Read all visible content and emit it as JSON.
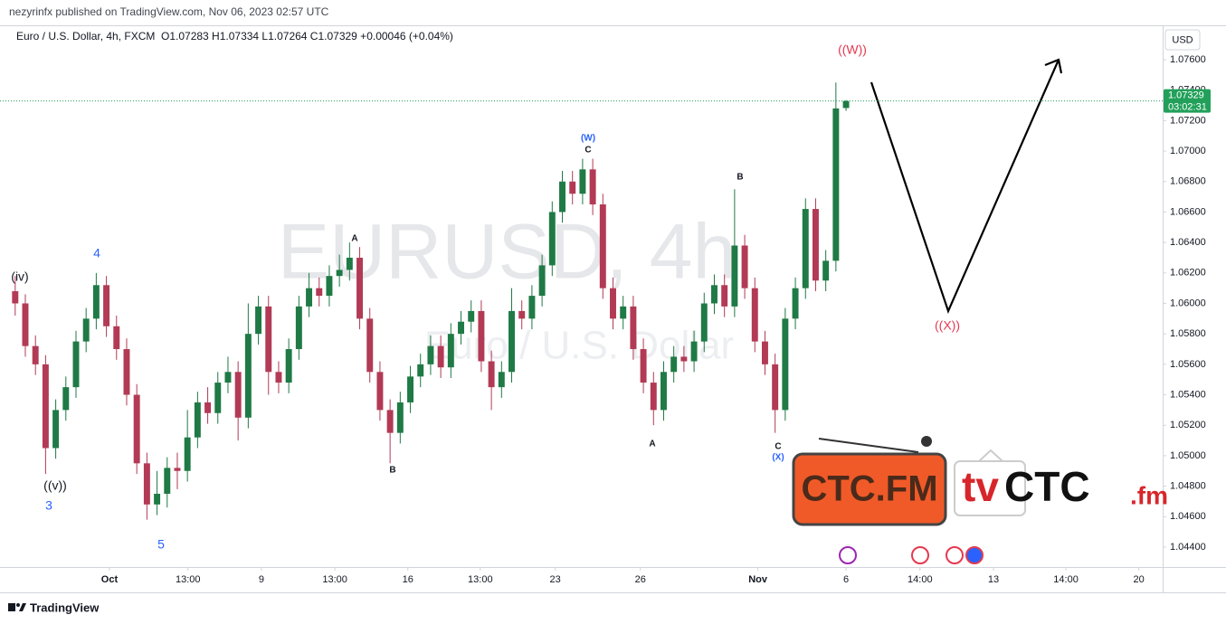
{
  "chart_data": {
    "type": "candlestick",
    "published": "nezyrinfx published on TradingView.com, Nov 06, 2023 02:57 UTC",
    "symbol": "Euro / U.S. Dollar, 4h, FXCM",
    "ohlc_text": "O1.07283  H1.07334  L1.07264  C1.07329  +0.00046 (+0.04%)",
    "watermark": "EURUSD, 4h",
    "watermark_sub": "Euro / U.S. Dollar",
    "currency": "USD",
    "countdown": "03:02:31",
    "footer": "TradingView",
    "up_color": "#1f7a45",
    "down_color": "#b23a55",
    "price_line_color": "#22a05a",
    "xlim": [
      -2,
      227.5
    ],
    "ylim": [
      1.04281,
      1.07814
    ],
    "yticks": [
      {
        "value": 1.044,
        "label": "1.04400"
      },
      {
        "value": 1.046,
        "label": "1.04600"
      },
      {
        "value": 1.048,
        "label": "1.04800"
      },
      {
        "value": 1.05,
        "label": "1.05000"
      },
      {
        "value": 1.052,
        "label": "1.05200"
      },
      {
        "value": 1.054,
        "label": "1.05400"
      },
      {
        "value": 1.056,
        "label": "1.05600"
      },
      {
        "value": 1.058,
        "label": "1.05800"
      },
      {
        "value": 1.06,
        "label": "1.06000"
      },
      {
        "value": 1.062,
        "label": "1.06200"
      },
      {
        "value": 1.064,
        "label": "1.06400"
      },
      {
        "value": 1.066,
        "label": "1.06600"
      },
      {
        "value": 1.068,
        "label": "1.06800"
      },
      {
        "value": 1.07,
        "label": "1.07000"
      },
      {
        "value": 1.072,
        "label": "1.07200"
      },
      {
        "value": 1.074,
        "label": "1.07400"
      },
      {
        "value": 1.076,
        "label": "1.07600"
      }
    ],
    "xticks": [
      {
        "value": 19.6,
        "label": "Oct"
      },
      {
        "value": 35.1,
        "label": "13:00"
      },
      {
        "value": 49.6,
        "label": "9"
      },
      {
        "value": 64.1,
        "label": "13:00"
      },
      {
        "value": 78.5,
        "label": "16"
      },
      {
        "value": 92.8,
        "label": "13:00"
      },
      {
        "value": 107.6,
        "label": "23"
      },
      {
        "value": 124.4,
        "label": "26"
      },
      {
        "value": 147.6,
        "label": "Nov"
      },
      {
        "value": 165,
        "label": "6"
      },
      {
        "value": 179.6,
        "label": "14:00"
      },
      {
        "value": 194.1,
        "label": "13"
      },
      {
        "value": 208.4,
        "label": "14:00"
      },
      {
        "value": 222.8,
        "label": "20"
      }
    ],
    "candles": [
      {
        "x": 1,
        "o": 1.0608,
        "h": 1.0618,
        "l": 1.0592,
        "c": 1.06
      },
      {
        "x": 3,
        "o": 1.06,
        "h": 1.0606,
        "l": 1.0565,
        "c": 1.0572
      },
      {
        "x": 5,
        "o": 1.0572,
        "h": 1.0579,
        "l": 1.0553,
        "c": 1.056
      },
      {
        "x": 7,
        "o": 1.056,
        "h": 1.0566,
        "l": 1.0488,
        "c": 1.0505
      },
      {
        "x": 9,
        "o": 1.0505,
        "h": 1.0537,
        "l": 1.0498,
        "c": 1.053
      },
      {
        "x": 11,
        "o": 1.053,
        "h": 1.0552,
        "l": 1.0523,
        "c": 1.0545
      },
      {
        "x": 13,
        "o": 1.0545,
        "h": 1.0582,
        "l": 1.0538,
        "c": 1.0575
      },
      {
        "x": 15,
        "o": 1.0575,
        "h": 1.0597,
        "l": 1.0568,
        "c": 1.059
      },
      {
        "x": 17,
        "o": 1.059,
        "h": 1.062,
        "l": 1.0583,
        "c": 1.0612
      },
      {
        "x": 19,
        "o": 1.0612,
        "h": 1.0618,
        "l": 1.0578,
        "c": 1.0585
      },
      {
        "x": 21,
        "o": 1.0585,
        "h": 1.0592,
        "l": 1.0563,
        "c": 1.057
      },
      {
        "x": 23,
        "o": 1.057,
        "h": 1.0577,
        "l": 1.0533,
        "c": 1.054
      },
      {
        "x": 25,
        "o": 1.054,
        "h": 1.0547,
        "l": 1.0488,
        "c": 1.0495
      },
      {
        "x": 27,
        "o": 1.0495,
        "h": 1.0502,
        "l": 1.0458,
        "c": 1.0468
      },
      {
        "x": 29,
        "o": 1.0468,
        "h": 1.049,
        "l": 1.0461,
        "c": 1.0475
      },
      {
        "x": 31,
        "o": 1.0475,
        "h": 1.0499,
        "l": 1.0466,
        "c": 1.0492
      },
      {
        "x": 33,
        "o": 1.0492,
        "h": 1.0502,
        "l": 1.0478,
        "c": 1.049
      },
      {
        "x": 35,
        "o": 1.049,
        "h": 1.053,
        "l": 1.0483,
        "c": 1.0512
      },
      {
        "x": 37,
        "o": 1.0512,
        "h": 1.0542,
        "l": 1.0505,
        "c": 1.0535
      },
      {
        "x": 39,
        "o": 1.0535,
        "h": 1.0545,
        "l": 1.0521,
        "c": 1.0528
      },
      {
        "x": 41,
        "o": 1.0528,
        "h": 1.0555,
        "l": 1.0521,
        "c": 1.0548
      },
      {
        "x": 43,
        "o": 1.0548,
        "h": 1.0565,
        "l": 1.0541,
        "c": 1.0555
      },
      {
        "x": 45,
        "o": 1.0555,
        "h": 1.0562,
        "l": 1.051,
        "c": 1.0525
      },
      {
        "x": 47,
        "o": 1.0525,
        "h": 1.06,
        "l": 1.0518,
        "c": 1.058
      },
      {
        "x": 49,
        "o": 1.058,
        "h": 1.0605,
        "l": 1.0573,
        "c": 1.0598
      },
      {
        "x": 51,
        "o": 1.0598,
        "h": 1.0605,
        "l": 1.054,
        "c": 1.0555
      },
      {
        "x": 53,
        "o": 1.0555,
        "h": 1.0562,
        "l": 1.0541,
        "c": 1.0548
      },
      {
        "x": 55,
        "o": 1.0548,
        "h": 1.0577,
        "l": 1.0541,
        "c": 1.057
      },
      {
        "x": 57,
        "o": 1.057,
        "h": 1.0605,
        "l": 1.0563,
        "c": 1.0598
      },
      {
        "x": 59,
        "o": 1.0598,
        "h": 1.062,
        "l": 1.0591,
        "c": 1.061
      },
      {
        "x": 61,
        "o": 1.061,
        "h": 1.0617,
        "l": 1.0598,
        "c": 1.0605
      },
      {
        "x": 63,
        "o": 1.0605,
        "h": 1.0625,
        "l": 1.0598,
        "c": 1.0618
      },
      {
        "x": 65,
        "o": 1.0618,
        "h": 1.0632,
        "l": 1.0611,
        "c": 1.0622
      },
      {
        "x": 67,
        "o": 1.0622,
        "h": 1.064,
        "l": 1.0615,
        "c": 1.063
      },
      {
        "x": 69,
        "o": 1.063,
        "h": 1.0637,
        "l": 1.0583,
        "c": 1.059
      },
      {
        "x": 71,
        "o": 1.059,
        "h": 1.0597,
        "l": 1.0548,
        "c": 1.0555
      },
      {
        "x": 73,
        "o": 1.0555,
        "h": 1.0562,
        "l": 1.0523,
        "c": 1.053
      },
      {
        "x": 75,
        "o": 1.053,
        "h": 1.0537,
        "l": 1.0495,
        "c": 1.0515
      },
      {
        "x": 77,
        "o": 1.0515,
        "h": 1.0542,
        "l": 1.0508,
        "c": 1.0535
      },
      {
        "x": 79,
        "o": 1.0535,
        "h": 1.0559,
        "l": 1.0528,
        "c": 1.0552
      },
      {
        "x": 81,
        "o": 1.0552,
        "h": 1.0567,
        "l": 1.0545,
        "c": 1.056
      },
      {
        "x": 83,
        "o": 1.056,
        "h": 1.0579,
        "l": 1.0553,
        "c": 1.0572
      },
      {
        "x": 85,
        "o": 1.0572,
        "h": 1.0579,
        "l": 1.0551,
        "c": 1.0558
      },
      {
        "x": 87,
        "o": 1.0558,
        "h": 1.0587,
        "l": 1.0551,
        "c": 1.058
      },
      {
        "x": 89,
        "o": 1.058,
        "h": 1.0595,
        "l": 1.0573,
        "c": 1.0588
      },
      {
        "x": 91,
        "o": 1.0588,
        "h": 1.0602,
        "l": 1.0581,
        "c": 1.0595
      },
      {
        "x": 93,
        "o": 1.0595,
        "h": 1.0602,
        "l": 1.0555,
        "c": 1.0562
      },
      {
        "x": 95,
        "o": 1.0562,
        "h": 1.0569,
        "l": 1.053,
        "c": 1.0545
      },
      {
        "x": 97,
        "o": 1.0545,
        "h": 1.0562,
        "l": 1.0538,
        "c": 1.0555
      },
      {
        "x": 99,
        "o": 1.0555,
        "h": 1.061,
        "l": 1.0548,
        "c": 1.0595
      },
      {
        "x": 101,
        "o": 1.0595,
        "h": 1.0602,
        "l": 1.0583,
        "c": 1.059
      },
      {
        "x": 103,
        "o": 1.059,
        "h": 1.0612,
        "l": 1.0583,
        "c": 1.0605
      },
      {
        "x": 105,
        "o": 1.0605,
        "h": 1.0632,
        "l": 1.0598,
        "c": 1.0625
      },
      {
        "x": 107,
        "o": 1.0625,
        "h": 1.0667,
        "l": 1.0618,
        "c": 1.066
      },
      {
        "x": 109,
        "o": 1.066,
        "h": 1.0687,
        "l": 1.0653,
        "c": 1.068
      },
      {
        "x": 111,
        "o": 1.068,
        "h": 1.0687,
        "l": 1.0665,
        "c": 1.0672
      },
      {
        "x": 113,
        "o": 1.0672,
        "h": 1.0695,
        "l": 1.0665,
        "c": 1.0688
      },
      {
        "x": 115,
        "o": 1.0688,
        "h": 1.0695,
        "l": 1.0658,
        "c": 1.0665
      },
      {
        "x": 117,
        "o": 1.0665,
        "h": 1.0672,
        "l": 1.0603,
        "c": 1.061
      },
      {
        "x": 119,
        "o": 1.061,
        "h": 1.0617,
        "l": 1.0583,
        "c": 1.059
      },
      {
        "x": 121,
        "o": 1.059,
        "h": 1.0605,
        "l": 1.0583,
        "c": 1.0598
      },
      {
        "x": 123,
        "o": 1.0598,
        "h": 1.0605,
        "l": 1.0563,
        "c": 1.057
      },
      {
        "x": 125,
        "o": 1.057,
        "h": 1.0577,
        "l": 1.0541,
        "c": 1.0548
      },
      {
        "x": 127,
        "o": 1.0548,
        "h": 1.0555,
        "l": 1.052,
        "c": 1.053
      },
      {
        "x": 129,
        "o": 1.053,
        "h": 1.0562,
        "l": 1.0523,
        "c": 1.0555
      },
      {
        "x": 131,
        "o": 1.0555,
        "h": 1.0572,
        "l": 1.0548,
        "c": 1.0565
      },
      {
        "x": 133,
        "o": 1.0565,
        "h": 1.0572,
        "l": 1.0555,
        "c": 1.0562
      },
      {
        "x": 135,
        "o": 1.0562,
        "h": 1.0582,
        "l": 1.0555,
        "c": 1.0575
      },
      {
        "x": 137,
        "o": 1.0575,
        "h": 1.0607,
        "l": 1.0568,
        "c": 1.06
      },
      {
        "x": 139,
        "o": 1.06,
        "h": 1.0619,
        "l": 1.0593,
        "c": 1.0612
      },
      {
        "x": 141,
        "o": 1.0612,
        "h": 1.0619,
        "l": 1.0591,
        "c": 1.0598
      },
      {
        "x": 143,
        "o": 1.0598,
        "h": 1.0675,
        "l": 1.0591,
        "c": 1.0638
      },
      {
        "x": 145,
        "o": 1.0638,
        "h": 1.0645,
        "l": 1.0603,
        "c": 1.061
      },
      {
        "x": 147,
        "o": 1.061,
        "h": 1.0617,
        "l": 1.0568,
        "c": 1.0575
      },
      {
        "x": 149,
        "o": 1.0575,
        "h": 1.0582,
        "l": 1.0553,
        "c": 1.056
      },
      {
        "x": 151,
        "o": 1.056,
        "h": 1.0567,
        "l": 1.0515,
        "c": 1.053
      },
      {
        "x": 153,
        "o": 1.053,
        "h": 1.0597,
        "l": 1.0523,
        "c": 1.059
      },
      {
        "x": 155,
        "o": 1.059,
        "h": 1.0617,
        "l": 1.0583,
        "c": 1.061
      },
      {
        "x": 157,
        "o": 1.061,
        "h": 1.0669,
        "l": 1.0603,
        "c": 1.0662
      },
      {
        "x": 159,
        "o": 1.0662,
        "h": 1.0669,
        "l": 1.0608,
        "c": 1.0615
      },
      {
        "x": 161,
        "o": 1.0615,
        "h": 1.0635,
        "l": 1.0608,
        "c": 1.0628
      },
      {
        "x": 163,
        "o": 1.0628,
        "h": 1.0745,
        "l": 1.0621,
        "c": 1.0728
      },
      {
        "x": 165,
        "o": 1.07283,
        "h": 1.07334,
        "l": 1.07264,
        "c": 1.07329
      }
    ],
    "annotations": [
      {
        "text": "(iv)",
        "color": "#131722"
      },
      {
        "text": "4",
        "color": "#2962ff"
      },
      {
        "text": "((v))",
        "color": "#131722"
      },
      {
        "text": "3",
        "color": "#2962ff"
      },
      {
        "text": "5",
        "color": "#2962ff"
      },
      {
        "text": "A",
        "color": "#131722"
      },
      {
        "text": "B",
        "color": "#131722"
      },
      {
        "text": "(W)",
        "color": "#2962ff"
      },
      {
        "text": "C",
        "color": "#131722"
      },
      {
        "text": "A",
        "color": "#131722"
      },
      {
        "text": "B",
        "color": "#131722"
      },
      {
        "text": "C",
        "color": "#131722"
      },
      {
        "text": "(X)",
        "color": "#2962ff"
      },
      {
        "text": "((W))",
        "color": "#e53950"
      },
      {
        "text": "((X))",
        "color": "#e53950"
      }
    ],
    "logo_left": "CTC.FM",
    "logo_right_prefix": "tv",
    "logo_right_main": "CTC",
    "logo_right_suffix": ".fm"
  }
}
